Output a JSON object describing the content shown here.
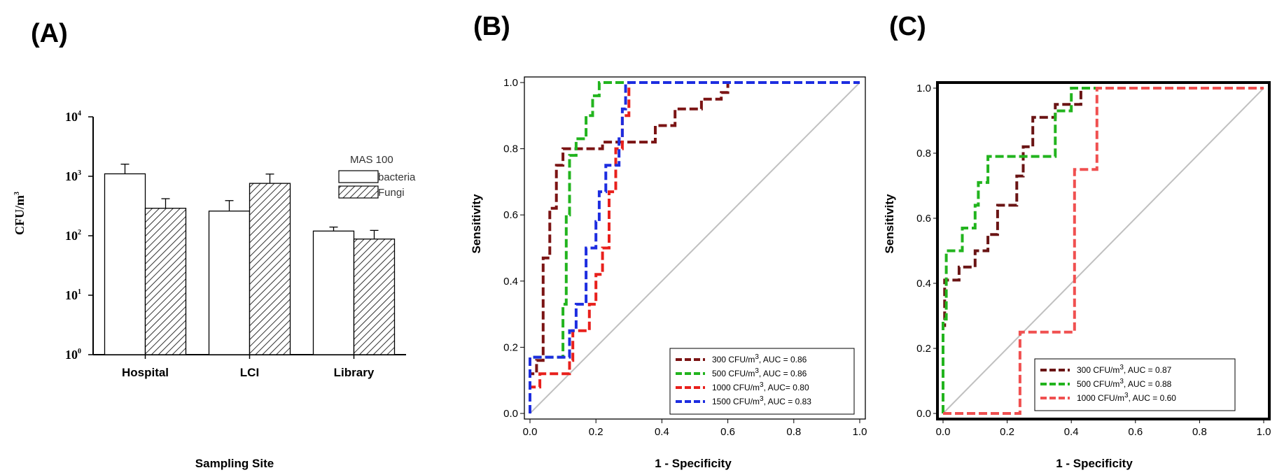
{
  "chart_data": [
    {
      "panel": "(A)",
      "type": "bar",
      "xlabel": "Sampling Site",
      "ylabel": "CFU/m3",
      "yscale": "log",
      "ylim": [
        1,
        10000
      ],
      "yticks": [
        {
          "base": "10",
          "exp": "0"
        },
        {
          "base": "10",
          "exp": "1"
        },
        {
          "base": "10",
          "exp": "2"
        },
        {
          "base": "10",
          "exp": "3"
        },
        {
          "base": "10",
          "exp": "4"
        }
      ],
      "legend_title": "MAS 100",
      "categories": [
        "Hospital",
        "LCI",
        "Library"
      ],
      "series": [
        {
          "name": "bacteria",
          "fill": "#ffffff",
          "values": [
            1100,
            260,
            120
          ],
          "err": [
            500,
            130,
            20
          ]
        },
        {
          "name": "Fungi",
          "fill": "hatch",
          "values": [
            290,
            760,
            88
          ],
          "err": [
            130,
            330,
            35
          ]
        }
      ]
    },
    {
      "panel": "(B)",
      "type": "line",
      "xlabel": "1 - Specificity",
      "ylabel": "Sensitivity",
      "xlim": [
        0,
        1
      ],
      "ylim": [
        0,
        1
      ],
      "xticks": [
        "0.0",
        "0.2",
        "0.4",
        "0.6",
        "0.8",
        "1.0"
      ],
      "yticks": [
        "0.0",
        "0.2",
        "0.4",
        "0.6",
        "0.8",
        "1.0"
      ],
      "legend_position": "bottom-right",
      "series": [
        {
          "name": "300 CFU/m",
          "sup": "3",
          "suffix": ", AUC = 0.86",
          "color": "#7b1414",
          "points": [
            [
              0,
              0
            ],
            [
              0,
              0.12
            ],
            [
              0.02,
              0.12
            ],
            [
              0.02,
              0.16
            ],
            [
              0.04,
              0.16
            ],
            [
              0.04,
              0.47
            ],
            [
              0.06,
              0.47
            ],
            [
              0.06,
              0.62
            ],
            [
              0.08,
              0.62
            ],
            [
              0.08,
              0.75
            ],
            [
              0.1,
              0.75
            ],
            [
              0.1,
              0.8
            ],
            [
              0.22,
              0.8
            ],
            [
              0.22,
              0.82
            ],
            [
              0.38,
              0.82
            ],
            [
              0.38,
              0.87
            ],
            [
              0.44,
              0.87
            ],
            [
              0.44,
              0.92
            ],
            [
              0.52,
              0.92
            ],
            [
              0.52,
              0.95
            ],
            [
              0.58,
              0.95
            ],
            [
              0.58,
              0.97
            ],
            [
              0.6,
              0.97
            ],
            [
              0.6,
              1.0
            ],
            [
              1,
              1
            ]
          ]
        },
        {
          "name": "500 CFU/m",
          "sup": "3",
          "suffix": ", AUC = 0.86",
          "color": "#22b41e",
          "points": [
            [
              0,
              0
            ],
            [
              0,
              0.17
            ],
            [
              0.1,
              0.17
            ],
            [
              0.1,
              0.33
            ],
            [
              0.11,
              0.33
            ],
            [
              0.11,
              0.6
            ],
            [
              0.12,
              0.6
            ],
            [
              0.12,
              0.78
            ],
            [
              0.14,
              0.78
            ],
            [
              0.14,
              0.83
            ],
            [
              0.17,
              0.83
            ],
            [
              0.17,
              0.9
            ],
            [
              0.19,
              0.9
            ],
            [
              0.19,
              0.96
            ],
            [
              0.21,
              0.96
            ],
            [
              0.21,
              1.0
            ],
            [
              1,
              1
            ]
          ]
        },
        {
          "name": "1000 CFU/m",
          "sup": "3",
          "suffix": ", AUC= 0.80",
          "color": "#e8201c",
          "points": [
            [
              0,
              0
            ],
            [
              0,
              0.08
            ],
            [
              0.03,
              0.08
            ],
            [
              0.03,
              0.12
            ],
            [
              0.12,
              0.12
            ],
            [
              0.12,
              0.16
            ],
            [
              0.13,
              0.16
            ],
            [
              0.13,
              0.25
            ],
            [
              0.18,
              0.25
            ],
            [
              0.18,
              0.33
            ],
            [
              0.2,
              0.33
            ],
            [
              0.2,
              0.42
            ],
            [
              0.22,
              0.42
            ],
            [
              0.22,
              0.5
            ],
            [
              0.24,
              0.5
            ],
            [
              0.24,
              0.67
            ],
            [
              0.26,
              0.67
            ],
            [
              0.26,
              0.8
            ],
            [
              0.28,
              0.8
            ],
            [
              0.28,
              0.9
            ],
            [
              0.3,
              0.9
            ],
            [
              0.3,
              1.0
            ],
            [
              1,
              1
            ]
          ]
        },
        {
          "name": "1500 CFU/m",
          "sup": "3",
          "suffix": ", AUC = 0.83",
          "color": "#1d2de0",
          "points": [
            [
              0,
              0
            ],
            [
              0,
              0.17
            ],
            [
              0.12,
              0.17
            ],
            [
              0.12,
              0.25
            ],
            [
              0.14,
              0.25
            ],
            [
              0.14,
              0.33
            ],
            [
              0.17,
              0.33
            ],
            [
              0.17,
              0.5
            ],
            [
              0.2,
              0.5
            ],
            [
              0.2,
              0.58
            ],
            [
              0.21,
              0.58
            ],
            [
              0.21,
              0.67
            ],
            [
              0.23,
              0.67
            ],
            [
              0.23,
              0.75
            ],
            [
              0.27,
              0.75
            ],
            [
              0.27,
              0.83
            ],
            [
              0.28,
              0.83
            ],
            [
              0.28,
              0.92
            ],
            [
              0.29,
              0.92
            ],
            [
              0.29,
              1.0
            ],
            [
              1,
              1
            ]
          ]
        }
      ]
    },
    {
      "panel": "(C)",
      "type": "line",
      "xlabel": "1 - Specificity",
      "ylabel": "Sensitivity",
      "xlim": [
        0,
        1
      ],
      "ylim": [
        0,
        1
      ],
      "xticks": [
        "0.0",
        "0.2",
        "0.4",
        "0.6",
        "0.8",
        "1.0"
      ],
      "yticks": [
        "0.0",
        "0.2",
        "0.4",
        "0.6",
        "0.8",
        "1.0"
      ],
      "legend_position": "bottom-right",
      "series": [
        {
          "name": "300 CFU/m",
          "sup": "3",
          "suffix": ", AUC = 0.87",
          "color": "#6a1414",
          "points": [
            [
              0,
              0
            ],
            [
              0,
              0.27
            ],
            [
              0.005,
              0.27
            ],
            [
              0.005,
              0.41
            ],
            [
              0.05,
              0.41
            ],
            [
              0.05,
              0.45
            ],
            [
              0.1,
              0.45
            ],
            [
              0.1,
              0.5
            ],
            [
              0.14,
              0.5
            ],
            [
              0.14,
              0.55
            ],
            [
              0.17,
              0.55
            ],
            [
              0.17,
              0.64
            ],
            [
              0.23,
              0.64
            ],
            [
              0.23,
              0.73
            ],
            [
              0.25,
              0.73
            ],
            [
              0.25,
              0.82
            ],
            [
              0.28,
              0.82
            ],
            [
              0.28,
              0.91
            ],
            [
              0.35,
              0.91
            ],
            [
              0.35,
              0.95
            ],
            [
              0.43,
              0.95
            ],
            [
              0.43,
              1.0
            ],
            [
              1,
              1
            ]
          ]
        },
        {
          "name": "500 CFU/m",
          "sup": "3",
          "suffix": ", AUC = 0.88",
          "color": "#22b41e",
          "points": [
            [
              0,
              0
            ],
            [
              0,
              0.29
            ],
            [
              0.01,
              0.29
            ],
            [
              0.01,
              0.5
            ],
            [
              0.06,
              0.5
            ],
            [
              0.06,
              0.57
            ],
            [
              0.1,
              0.57
            ],
            [
              0.1,
              0.64
            ],
            [
              0.11,
              0.64
            ],
            [
              0.11,
              0.71
            ],
            [
              0.14,
              0.71
            ],
            [
              0.14,
              0.79
            ],
            [
              0.35,
              0.79
            ],
            [
              0.35,
              0.93
            ],
            [
              0.4,
              0.93
            ],
            [
              0.4,
              1.0
            ],
            [
              1,
              1
            ]
          ]
        },
        {
          "name": "1000 CFU/m",
          "sup": "3",
          "suffix": ", AUC = 0.60",
          "color": "#f05050",
          "points": [
            [
              0,
              0
            ],
            [
              0.24,
              0
            ],
            [
              0.24,
              0.25
            ],
            [
              0.41,
              0.25
            ],
            [
              0.41,
              0.75
            ],
            [
              0.48,
              0.75
            ],
            [
              0.48,
              1.0
            ],
            [
              1,
              1
            ]
          ]
        }
      ]
    }
  ]
}
